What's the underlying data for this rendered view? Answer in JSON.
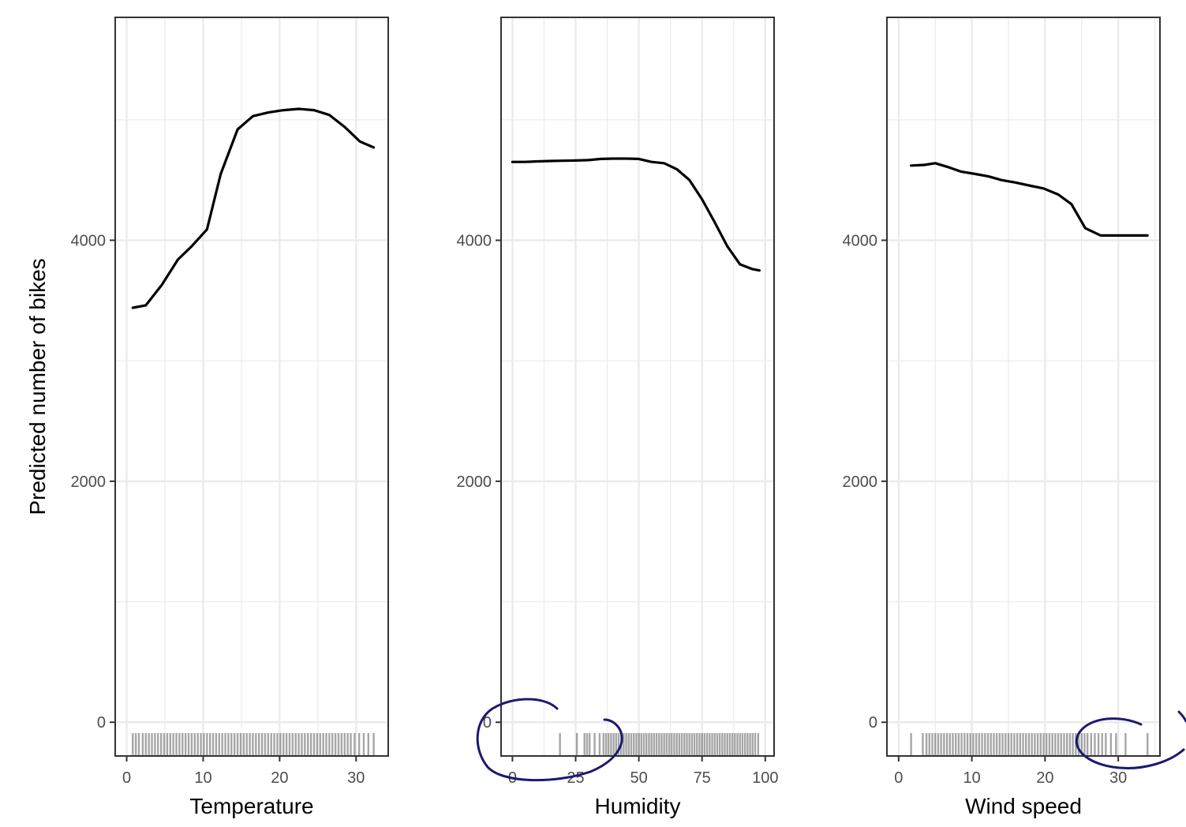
{
  "colors": {
    "line": "#000000",
    "grid": "#ebebeb",
    "panel_border": "#333333",
    "rug": "#000000",
    "annotation": "#1a1a6e",
    "tick_text": "#4d4d4d"
  },
  "ylabel": "Predicted number of bikes",
  "chart_data": [
    {
      "type": "line",
      "xlabel": "Temperature",
      "ylabel": "Predicted number of bikes",
      "xlim": [
        -1.5,
        34.2
      ],
      "ylim": [
        -280,
        5850
      ],
      "x_ticks": [
        0,
        10,
        20,
        30
      ],
      "y_ticks": [
        0,
        2000,
        4000
      ],
      "grid": true,
      "series": [
        {
          "x": [
            0.8,
            2.5,
            4.6,
            6.7,
            8.5,
            10.5,
            12.3,
            14.5,
            16.5,
            18.5,
            20.5,
            22.5,
            24.5,
            26.5,
            28.5,
            30.5,
            32.3
          ],
          "values": [
            3440,
            3460,
            3630,
            3840,
            3950,
            4090,
            4550,
            4920,
            5030,
            5060,
            5080,
            5090,
            5080,
            5040,
            4940,
            4820,
            4770
          ]
        }
      ],
      "rug": [
        0.8,
        1.2,
        1.6,
        2.1,
        2.5,
        2.9,
        3.3,
        3.7,
        4.1,
        4.5,
        4.9,
        5.3,
        5.7,
        6.1,
        6.5,
        6.9,
        7.3,
        7.7,
        8.1,
        8.5,
        8.9,
        9.3,
        9.7,
        10.1,
        10.5,
        10.9,
        11.3,
        11.7,
        12.1,
        12.5,
        12.9,
        13.3,
        13.7,
        14.1,
        14.5,
        14.9,
        15.3,
        15.7,
        16.1,
        16.5,
        16.9,
        17.3,
        17.7,
        18.1,
        18.5,
        18.9,
        19.3,
        19.7,
        20.1,
        20.5,
        20.9,
        21.3,
        21.7,
        22.1,
        22.5,
        22.9,
        23.3,
        23.7,
        24.1,
        24.5,
        24.9,
        25.3,
        25.7,
        26.1,
        26.5,
        26.9,
        27.3,
        27.7,
        28.1,
        28.5,
        28.9,
        29.3,
        29.8,
        30.4,
        31.0,
        31.6,
        32.3
      ]
    },
    {
      "type": "line",
      "xlabel": "Humidity",
      "ylabel": "",
      "xlim": [
        -4.5,
        103.5
      ],
      "ylim": [
        -280,
        5850
      ],
      "x_ticks": [
        0,
        25,
        50,
        75,
        100
      ],
      "y_ticks": [
        0,
        2000,
        4000
      ],
      "grid": true,
      "series": [
        {
          "x": [
            0,
            5,
            10,
            15,
            20,
            25,
            30,
            35,
            40,
            45,
            50,
            55,
            60,
            65,
            70,
            75,
            80,
            85,
            90,
            95,
            97.7
          ],
          "values": [
            4650,
            4650,
            4655,
            4658,
            4660,
            4662,
            4665,
            4675,
            4678,
            4678,
            4675,
            4650,
            4640,
            4590,
            4500,
            4340,
            4150,
            3950,
            3800,
            3760,
            3750
          ]
        }
      ],
      "rug": [
        18.8,
        25.5,
        28.5,
        29.5,
        30.5,
        32.5,
        34.5,
        36,
        37,
        38,
        39,
        40,
        41,
        42,
        43,
        44,
        45,
        46,
        47,
        48,
        49,
        50,
        51,
        52,
        53,
        54,
        55,
        56,
        57,
        58,
        59,
        60,
        61,
        62,
        63,
        64,
        65,
        66,
        67,
        68,
        69,
        70,
        71,
        72,
        73,
        74,
        75,
        76,
        77,
        78,
        79,
        80,
        81,
        82,
        83,
        84,
        85,
        86,
        87,
        88,
        89,
        90,
        91,
        92,
        93,
        94,
        95,
        96,
        97.2
      ]
    },
    {
      "type": "line",
      "xlabel": "Wind speed",
      "ylabel": "",
      "xlim": [
        -1.6,
        35.7
      ],
      "ylim": [
        -280,
        5850
      ],
      "x_ticks": [
        0,
        10,
        20,
        30
      ],
      "y_ticks": [
        0,
        2000,
        4000
      ],
      "grid": true,
      "series": [
        {
          "x": [
            1.7,
            3.5,
            5.0,
            6.6,
            8.5,
            10.5,
            12.3,
            14.0,
            15.9,
            17.8,
            19.8,
            21.8,
            23.6,
            25.5,
            27.6,
            29.6,
            31.8,
            34.0
          ],
          "values": [
            4620,
            4625,
            4640,
            4610,
            4570,
            4550,
            4530,
            4500,
            4480,
            4455,
            4430,
            4380,
            4300,
            4100,
            4040,
            4040,
            4040,
            4040
          ]
        }
      ],
      "rug": [
        1.7,
        3.3,
        3.8,
        4.2,
        4.6,
        5.0,
        5.4,
        5.8,
        6.2,
        6.6,
        7.0,
        7.4,
        7.8,
        8.2,
        8.6,
        9.0,
        9.4,
        9.8,
        10.2,
        10.6,
        11.0,
        11.4,
        11.8,
        12.2,
        12.6,
        13.0,
        13.4,
        13.8,
        14.2,
        14.6,
        15.0,
        15.4,
        15.8,
        16.2,
        16.6,
        17.0,
        17.4,
        17.8,
        18.2,
        18.6,
        19.0,
        19.4,
        19.8,
        20.2,
        20.6,
        21.0,
        21.4,
        21.8,
        22.2,
        22.6,
        23.0,
        23.4,
        23.8,
        24.2,
        24.6,
        25.0,
        25.4,
        25.8,
        26.3,
        26.8,
        27.3,
        27.8,
        28.3,
        29.0,
        29.7,
        31.0,
        34.0
      ]
    }
  ]
}
